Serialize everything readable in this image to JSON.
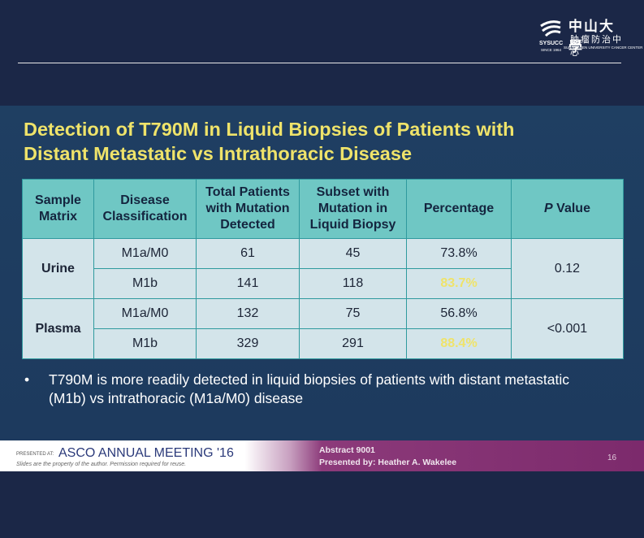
{
  "logo": {
    "name": "中山大學",
    "unit": "肿瘤防治中心",
    "abbr": "SYSUCC",
    "since": "SINCE 1964",
    "english": "SUN YAT-SEN UNIVERSITY CANCER CENTER"
  },
  "title": [
    "Detection of T790M in Liquid Biopsies of Patients with",
    "Distant Metastatic vs Intrathoracic Disease"
  ],
  "table": {
    "header": [
      "Sample Matrix",
      "Disease Classification",
      "Total Patients with Mutation Detected",
      "Subset with Mutation in Liquid Biopsy",
      "Percentage",
      {
        "italic": "P",
        "text": "Value"
      }
    ],
    "groups": [
      {
        "matrix": "Urine",
        "p": "0.12",
        "rows": [
          [
            "M1a/M0",
            "61",
            "45",
            "73.8%"
          ],
          [
            "M1b",
            "141",
            "118",
            "83.7%"
          ]
        ]
      },
      {
        "matrix": "Plasma",
        "p": "<0.001",
        "rows": [
          [
            "M1a/M0",
            "132",
            "75",
            "56.8%"
          ],
          [
            "M1b",
            "329",
            "291",
            "88.4%"
          ]
        ]
      }
    ]
  },
  "bullet": "T790M is more readily detected in liquid biopsies of patients with distant metastatic (M1b) vs intrathoracic (M1a/M0) disease",
  "footer": {
    "presented_at": "PRESENTED AT:",
    "meeting": "ASCO ANNUAL MEETING '16",
    "disclaimer": "Slides are the property of the author. Permission required for reuse.",
    "abstract": "Abstract 9001",
    "presenter": "Presented by: Heather A. Wakelee",
    "page": "16"
  }
}
